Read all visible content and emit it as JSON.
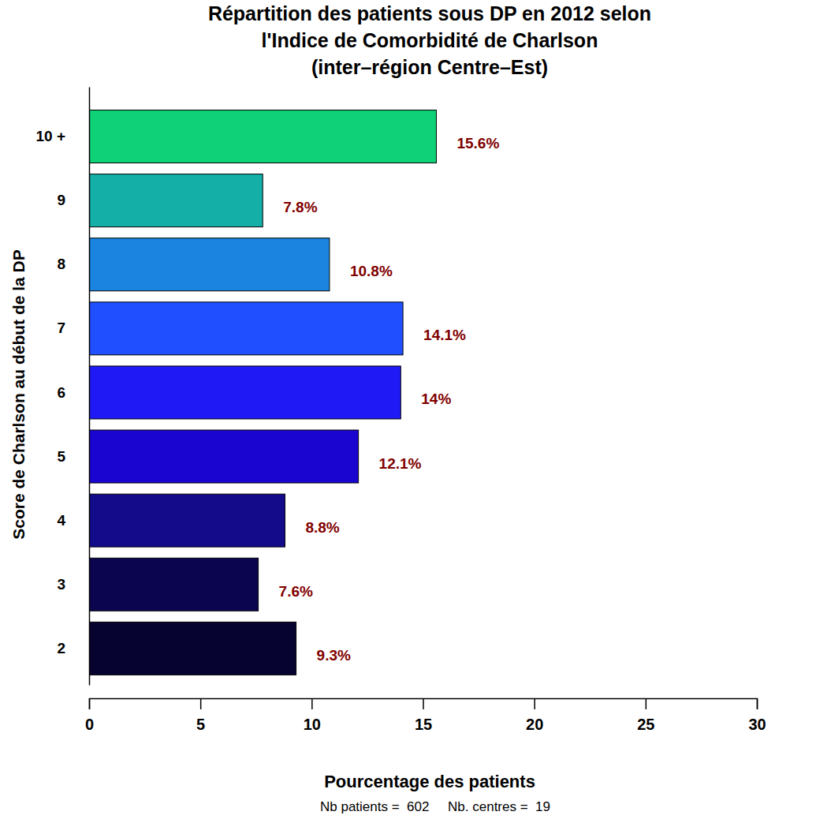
{
  "chart_data": {
    "type": "bar",
    "orientation": "horizontal",
    "title": [
      "Répartition des patients sous DP en 2012 selon",
      "l'Indice de Comorbidité de Charlson",
      "(inter–région Centre–Est)"
    ],
    "x_label": "Pourcentage des patients",
    "y_label": "Score de Charlson au début de la DP",
    "note": "Nb patients =  602     Nb. centres =  19",
    "categories": [
      "2",
      "3",
      "4",
      "5",
      "6",
      "7",
      "8",
      "9",
      "10 +"
    ],
    "values": [
      9.3,
      7.6,
      8.8,
      12.1,
      14,
      14.1,
      10.8,
      7.8,
      15.6
    ],
    "value_labels": [
      "9.3%",
      "7.6%",
      "8.8%",
      "12.1%",
      "14%",
      "14.1%",
      "10.8%",
      "7.8%",
      "15.6%"
    ],
    "colors": [
      "#070330",
      "#0b0550",
      "#130b8a",
      "#1a04d0",
      "#1f1af5",
      "#1f4fff",
      "#1a84e0",
      "#14b0a8",
      "#0fd178"
    ],
    "xlim": [
      0,
      30
    ],
    "xticks": [
      0,
      5,
      10,
      15,
      20,
      25,
      30
    ],
    "data_labels": true,
    "grid": false
  }
}
